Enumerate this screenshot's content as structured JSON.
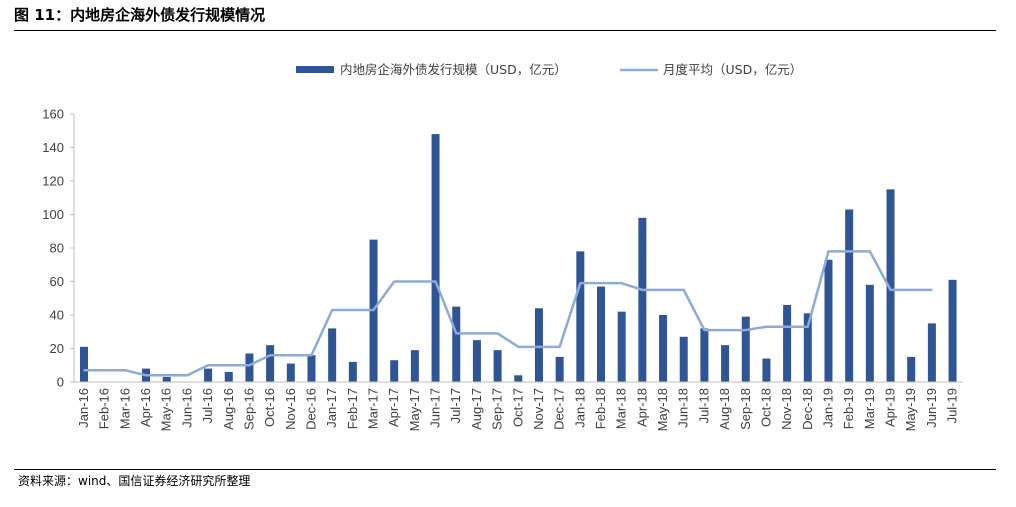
{
  "figure": {
    "title": "图 11：内地房企海外债发行规模情况",
    "source": "资料来源：wind、国信证券经济研究所整理"
  },
  "chart_data": {
    "type": "bar",
    "categories": [
      "Jan-16",
      "Feb-16",
      "Mar-16",
      "Apr-16",
      "May-16",
      "Jun-16",
      "Jul-16",
      "Aug-16",
      "Sep-16",
      "Oct-16",
      "Nov-16",
      "Dec-16",
      "Jan-17",
      "Feb-17",
      "Mar-17",
      "Apr-17",
      "May-17",
      "Jun-17",
      "Jul-17",
      "Aug-17",
      "Sep-17",
      "Oct-17",
      "Nov-17",
      "Dec-17",
      "Jan-18",
      "Feb-18",
      "Mar-18",
      "Apr-18",
      "May-18",
      "Jun-18",
      "Jul-18",
      "Aug-18",
      "Sep-18",
      "Oct-18",
      "Nov-18",
      "Dec-18",
      "Jan-19",
      "Feb-19",
      "Mar-19",
      "Apr-19",
      "May-19",
      "Jun-19",
      "Jul-19"
    ],
    "series": [
      {
        "name": "内地房企海外债发行规模（USD，亿元）",
        "type": "bar",
        "color": "#2f5597",
        "values": [
          21,
          0,
          0,
          8,
          3,
          0,
          8,
          6,
          17,
          22,
          11,
          16,
          32,
          12,
          85,
          13,
          19,
          148,
          45,
          25,
          19,
          4,
          44,
          15,
          78,
          57,
          42,
          98,
          40,
          27,
          32,
          22,
          39,
          14,
          46,
          41,
          73,
          103,
          58,
          115,
          15,
          35,
          61
        ]
      },
      {
        "name": "月度平均（USD，亿元）",
        "type": "line",
        "color": "#8eaadb",
        "values": [
          7,
          7,
          7,
          4,
          4,
          4,
          10,
          10,
          10,
          16,
          16,
          16,
          43,
          43,
          43,
          60,
          60,
          60,
          29,
          29,
          29,
          21,
          21,
          21,
          59,
          59,
          59,
          55,
          55,
          55,
          31,
          31,
          31,
          33,
          33,
          33,
          78,
          78,
          78,
          55,
          55,
          55,
          null
        ]
      }
    ],
    "y_ticks": [
      "0",
      "20",
      "40",
      "60",
      "80",
      "100",
      "120",
      "140",
      "160"
    ],
    "ylim": [
      0,
      160
    ],
    "xlabel": "",
    "ylabel": "",
    "grid": false,
    "legend_position": "top-center"
  }
}
